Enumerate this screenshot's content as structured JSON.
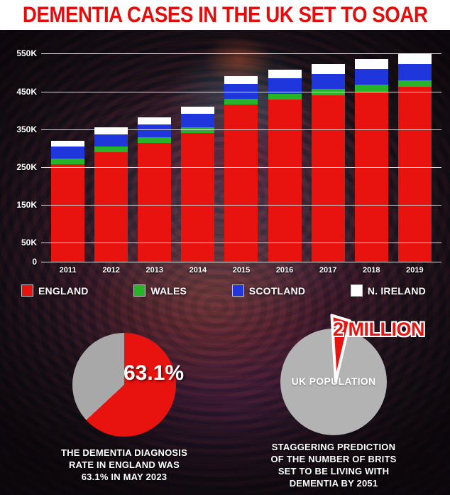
{
  "banner": {
    "title": "DEMENTIA CASES IN THE UK SET TO SOAR"
  },
  "colors": {
    "headline_red": "#e20d0d",
    "england_red": "#e8120f",
    "wales_green": "#28b428",
    "scotland_blue": "#2036dd",
    "n_ireland_white": "#ffffff",
    "pie_gray": "#a8a8a8"
  },
  "chart_data": [
    {
      "id": "dementia-cases-by-nation",
      "type": "bar",
      "stacked": true,
      "title": "",
      "categories": [
        "2011",
        "2012",
        "2013",
        "2014",
        "2015",
        "2016",
        "2017",
        "2018",
        "2019"
      ],
      "series": [
        {
          "name": "ENGLAND",
          "color": "#e8120f",
          "values": [
            258,
            290,
            313,
            340,
            415,
            428,
            440,
            450,
            462
          ]
        },
        {
          "name": "WALES",
          "color": "#28b428",
          "values": [
            14,
            14,
            15,
            15,
            16,
            16,
            17,
            17,
            18
          ]
        },
        {
          "name": "SCOTLAND",
          "color": "#2036dd",
          "values": [
            32,
            33,
            34,
            35,
            38,
            40,
            40,
            42,
            43
          ]
        },
        {
          "name": "N. IRELAND",
          "color": "#ffffff",
          "values": [
            16,
            18,
            20,
            20,
            21,
            24,
            25,
            26,
            27
          ]
        }
      ],
      "unit": "thousands of cases",
      "ytick_values": [
        550,
        450,
        350,
        250,
        150,
        50,
        0
      ],
      "ytick_labels": [
        "550K",
        "450K",
        "350K",
        "250K",
        "150K",
        "50K",
        "0"
      ],
      "ylim": [
        0,
        575
      ],
      "grid": true,
      "legend_position": "bottom"
    },
    {
      "id": "dementia-diagnosis-rate",
      "type": "pie",
      "slices": [
        {
          "label": "63.1%",
          "value": 63.1,
          "color": "#e8120f"
        },
        {
          "label": "",
          "value": 36.9,
          "color": "#a8a8a8"
        }
      ],
      "annotation": "63.1%",
      "caption": "THE DEMENTIA DIAGNOSIS\nRATE IN ENGLAND WAS\n63.1% IN MAY 2023"
    },
    {
      "id": "uk-population-prediction",
      "type": "pie",
      "slices": [
        {
          "label": "2 MILLION",
          "value": 3.3,
          "color": "#e8120f"
        },
        {
          "label": "UK POPULATION",
          "value": 96.7,
          "color": "#b3b3b3"
        }
      ],
      "annotation": "2 MILLION",
      "center_label": "UK POPULATION",
      "caption": "STAGGERING PREDICTION\nOF THE NUMBER OF BRITS\nSET TO BE LIVING WITH\nDEMENTIA BY 2051"
    }
  ]
}
